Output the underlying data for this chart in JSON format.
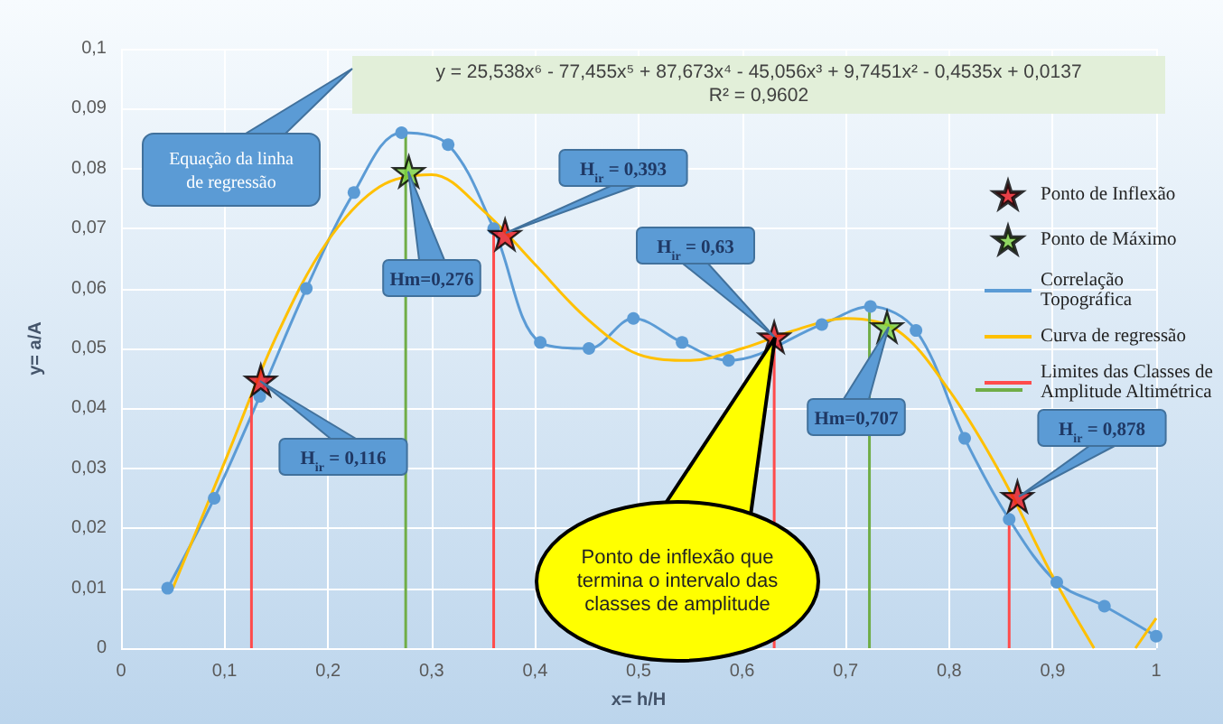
{
  "chart_data": {
    "type": "line",
    "xlabel": "x= h/H",
    "ylabel": "y= a/A",
    "xlim": [
      0,
      1
    ],
    "xticks": [
      0,
      {
        "value": 0.1,
        "label": "0,1"
      },
      {
        "value": 0.2,
        "label": "0,2"
      },
      {
        "value": 0.3,
        "label": "0,3"
      },
      {
        "value": 0.4,
        "label": "0,4"
      },
      {
        "value": 0.5,
        "label": "0,5"
      },
      {
        "value": 0.6,
        "label": "0,6"
      },
      {
        "value": 0.7,
        "label": "0,7"
      },
      {
        "value": 0.8,
        "label": "0,8"
      },
      {
        "value": 0.9,
        "label": "0,9"
      },
      1
    ],
    "ylim": [
      0,
      0.1
    ],
    "yticks": [
      0,
      {
        "value": 0.01,
        "label": "0,01"
      },
      {
        "value": 0.02,
        "label": "0,02"
      },
      {
        "value": 0.03,
        "label": "0,03"
      },
      {
        "value": 0.04,
        "label": "0,04"
      },
      {
        "value": 0.05,
        "label": "0,05"
      },
      {
        "value": 0.06,
        "label": "0,06"
      },
      {
        "value": 0.07,
        "label": "0,07"
      },
      {
        "value": 0.08,
        "label": "0,08"
      },
      {
        "value": 0.09,
        "label": "0,09"
      },
      {
        "value": 0.1,
        "label": "0,1"
      }
    ],
    "grid": true,
    "legend": "right",
    "series": [
      {
        "name": "Ponto de Inflexão",
        "type": "scatter",
        "marker": "star",
        "color": "#e8141b",
        "x": [
          0.135,
          0.371,
          0.631,
          0.866
        ],
        "values": [
          0.0447,
          0.069,
          0.0519,
          0.0253
        ]
      },
      {
        "name": "Ponto de Máximo",
        "type": "scatter",
        "marker": "star",
        "color": "#7ad13c",
        "x": [
          0.278,
          0.74
        ],
        "values": [
          0.0795,
          0.0536
        ]
      },
      {
        "name": "Correlação Topográfica",
        "type": "line",
        "marker": "circle",
        "color": "#5b9bd5",
        "x": [
          0.045,
          0.09,
          0.134,
          0.179,
          0.225,
          0.271,
          0.316,
          0.36,
          0.405,
          0.452,
          0.495,
          0.542,
          0.587,
          0.631,
          0.677,
          0.724,
          0.768,
          0.815,
          0.858,
          0.904,
          0.95,
          1.0
        ],
        "values": [
          0.01,
          0.025,
          0.042,
          0.06,
          0.076,
          0.086,
          0.084,
          0.07,
          0.051,
          0.05,
          0.055,
          0.051,
          0.048,
          null,
          0.054,
          0.057,
          0.053,
          0.035,
          0.0215,
          0.011,
          0.007,
          0.002
        ]
      },
      {
        "name": "Curva de regressão",
        "marker": "none",
        "color": "#ffc000",
        "x": [
          0.05,
          0.1,
          0.15,
          0.2,
          0.25,
          0.3,
          0.35,
          0.4,
          0.45,
          0.5,
          0.55,
          0.6,
          0.65,
          0.7,
          0.75,
          0.8,
          0.85,
          0.9,
          0.94,
          0.96,
          0.98,
          1.0
        ],
        "values": [
          0.01,
          0.031,
          0.052,
          0.068,
          0.077,
          0.079,
          0.073,
          0.064,
          0.055,
          0.049,
          0.048,
          0.05,
          0.053,
          0.055,
          0.053,
          0.043,
          0.029,
          0.012,
          0,
          null,
          0,
          0.005
        ]
      },
      {
        "name": "Limites das Classes de Amplitude Altimétrica",
        "type": "line",
        "marker": "none",
        "color": "#ff4b4b",
        "x": [
          0.126,
          0.126
        ],
        "values": [
          0,
          0.042
        ]
      },
      {
        "marker": "none",
        "color": "#70ad47",
        "x": [
          0.275,
          0.275
        ],
        "values": [
          0,
          0.086
        ]
      },
      {
        "marker": "none",
        "color": "#ff4b4b",
        "x": [
          0.36,
          0.36
        ],
        "values": [
          0,
          0.069
        ]
      },
      {
        "marker": "none",
        "color": "#ff4b4b",
        "x": [
          0.631,
          0.631
        ],
        "values": [
          0,
          0.052
        ]
      },
      {
        "marker": "none",
        "color": "#70ad47",
        "x": [
          0.723,
          0.723
        ],
        "values": [
          0,
          0.057
        ]
      },
      {
        "marker": "none",
        "color": "#ff4b4b",
        "x": [
          0.858,
          0.858
        ],
        "values": [
          0,
          0.0215
        ]
      }
    ],
    "annotations": [
      "y = 25,538x⁶ - 77,455x⁵ + 87,673x⁴ - 45,056x³ + 9,7451x² - 0,4535x + 0,0137\nR² = 0,9602",
      "Equação da linha\nde regressão",
      "H$_{ir}$ = 0,116",
      "Hm=0,276",
      "H$_{ir}$ = 0,393",
      "H$_{ir}$ = 0,63",
      "Hm=0,707",
      "H$_{ir}$ = 0,878",
      "Ponto de inflexão que termina o intervalo das classes de amplitude"
    ]
  }
}
